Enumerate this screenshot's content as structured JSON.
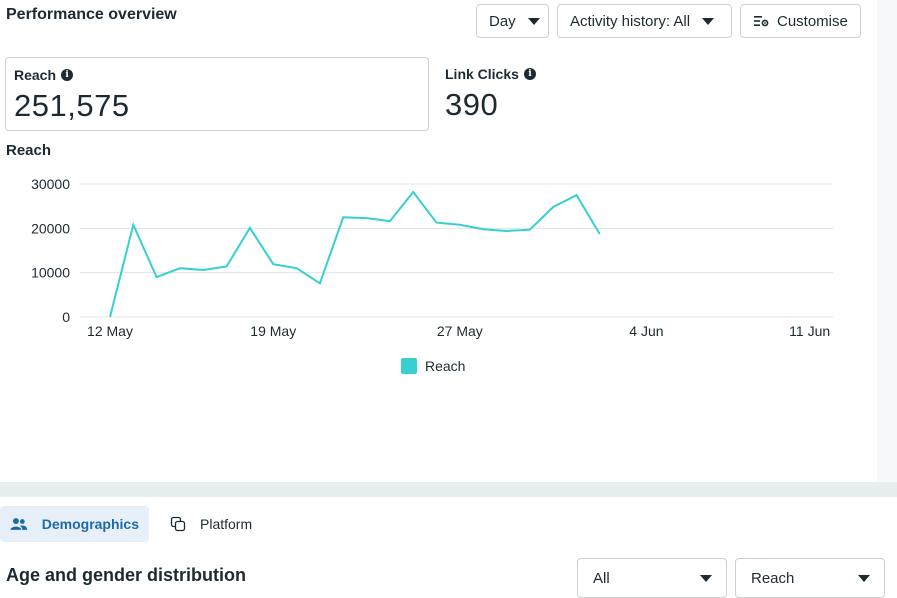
{
  "header": {
    "title": "Performance overview",
    "day_button": "Day",
    "activity_button": "Activity history: All",
    "customise_button": "Customise"
  },
  "metrics": [
    {
      "label": "Reach",
      "value": "251,575"
    },
    {
      "label": "Link Clicks",
      "value": "390"
    }
  ],
  "chart": {
    "section_title": "Reach",
    "legend_label": "Reach",
    "series_color": "#35d0cf"
  },
  "chart_data": {
    "type": "line",
    "ylim": [
      0,
      30000
    ],
    "y_ticks": [
      0,
      10000,
      20000,
      30000
    ],
    "y_tick_labels": [
      "0",
      "10000",
      "20000",
      "30000"
    ],
    "x_ticks": [
      {
        "label": "12 May",
        "date": "2024-05-12"
      },
      {
        "label": "19 May",
        "date": "2024-05-19"
      },
      {
        "label": "27 May",
        "date": "2024-05-27"
      },
      {
        "label": "4 Jun",
        "date": "2024-06-04"
      },
      {
        "label": "11 Jun",
        "date": "2024-06-11"
      }
    ],
    "xlim": [
      "2024-05-12",
      "2024-06-12"
    ],
    "grid": true,
    "legend_position": "bottom",
    "series": [
      {
        "name": "Reach",
        "points": [
          {
            "date": "2024-05-12",
            "y": 0
          },
          {
            "date": "2024-05-13",
            "y": 20800
          },
          {
            "date": "2024-05-14",
            "y": 9000
          },
          {
            "date": "2024-05-15",
            "y": 11000
          },
          {
            "date": "2024-05-16",
            "y": 10600
          },
          {
            "date": "2024-05-17",
            "y": 11400
          },
          {
            "date": "2024-05-18",
            "y": 20100
          },
          {
            "date": "2024-05-19",
            "y": 11900
          },
          {
            "date": "2024-05-20",
            "y": 11000
          },
          {
            "date": "2024-05-21",
            "y": 7600
          },
          {
            "date": "2024-05-22",
            "y": 22500
          },
          {
            "date": "2024-05-23",
            "y": 22300
          },
          {
            "date": "2024-05-24",
            "y": 21600
          },
          {
            "date": "2024-05-25",
            "y": 28200
          },
          {
            "date": "2024-05-26",
            "y": 21300
          },
          {
            "date": "2024-05-27",
            "y": 20800
          },
          {
            "date": "2024-05-28",
            "y": 19800
          },
          {
            "date": "2024-05-29",
            "y": 19400
          },
          {
            "date": "2024-05-30",
            "y": 19700
          },
          {
            "date": "2024-05-31",
            "y": 24800
          },
          {
            "date": "2024-06-01",
            "y": 27500
          },
          {
            "date": "2024-06-02",
            "y": 18700
          }
        ]
      }
    ]
  },
  "tabs": [
    {
      "label": "Demographics",
      "icon": "people-icon",
      "active": true
    },
    {
      "label": "Platform",
      "icon": "copy-icon",
      "active": false
    }
  ],
  "demographics": {
    "title": "Age and gender distribution",
    "filter_all": "All",
    "filter_reach": "Reach"
  }
}
